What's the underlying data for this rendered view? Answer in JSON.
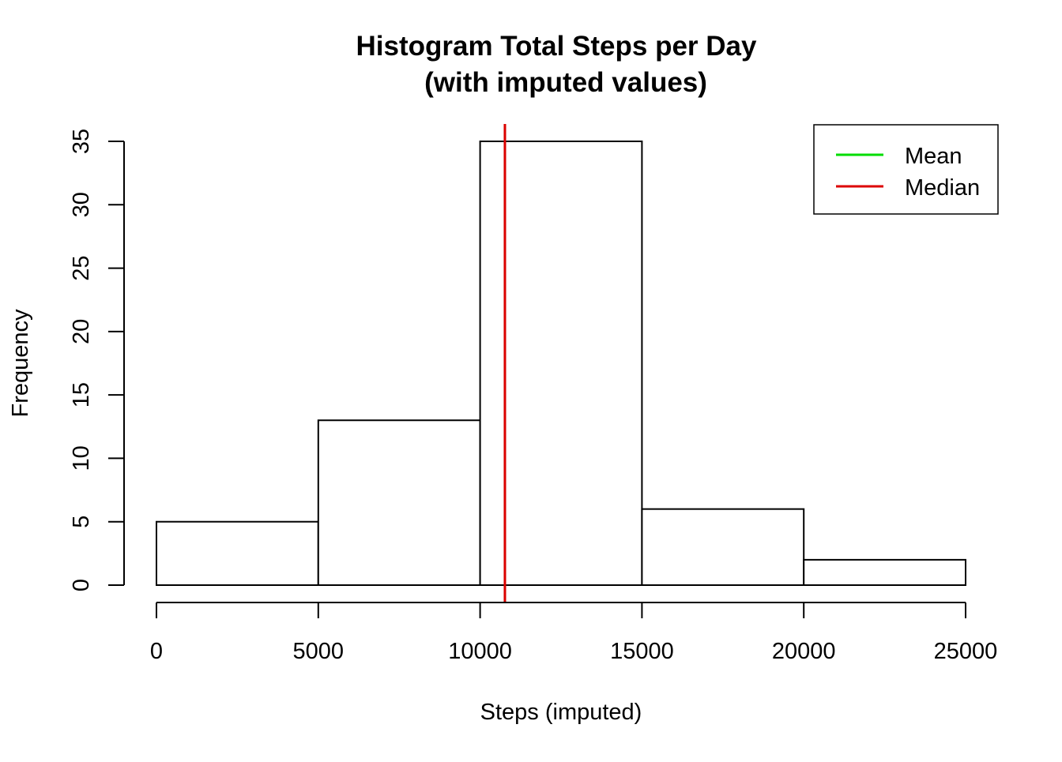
{
  "chart_data": {
    "type": "bar",
    "title": "Histogram Total Steps per Day",
    "subtitle": "(with imputed values)",
    "xlabel": "Steps (imputed)",
    "ylabel": "Frequency",
    "bins": [
      {
        "from": 0,
        "to": 5000,
        "count": 5
      },
      {
        "from": 5000,
        "to": 10000,
        "count": 13
      },
      {
        "from": 10000,
        "to": 15000,
        "count": 35
      },
      {
        "from": 15000,
        "to": 20000,
        "count": 6
      },
      {
        "from": 20000,
        "to": 25000,
        "count": 2
      }
    ],
    "xlim": [
      0,
      25000
    ],
    "ylim": [
      0,
      35
    ],
    "x_ticks": [
      0,
      5000,
      10000,
      15000,
      20000,
      25000
    ],
    "y_ticks": [
      0,
      5,
      10,
      15,
      20,
      25,
      30,
      35
    ],
    "reference_lines": [
      {
        "name": "Mean",
        "x": 10766,
        "color": "#00dd00"
      },
      {
        "name": "Median",
        "x": 10766,
        "color": "#dd0000"
      }
    ],
    "legend": {
      "position": "top-right",
      "items": [
        "Mean",
        "Median"
      ]
    },
    "grid": false,
    "colors": {
      "bar_fill": "#ffffff",
      "bar_stroke": "#000000",
      "mean": "#00dd00",
      "median": "#dd0000"
    }
  }
}
